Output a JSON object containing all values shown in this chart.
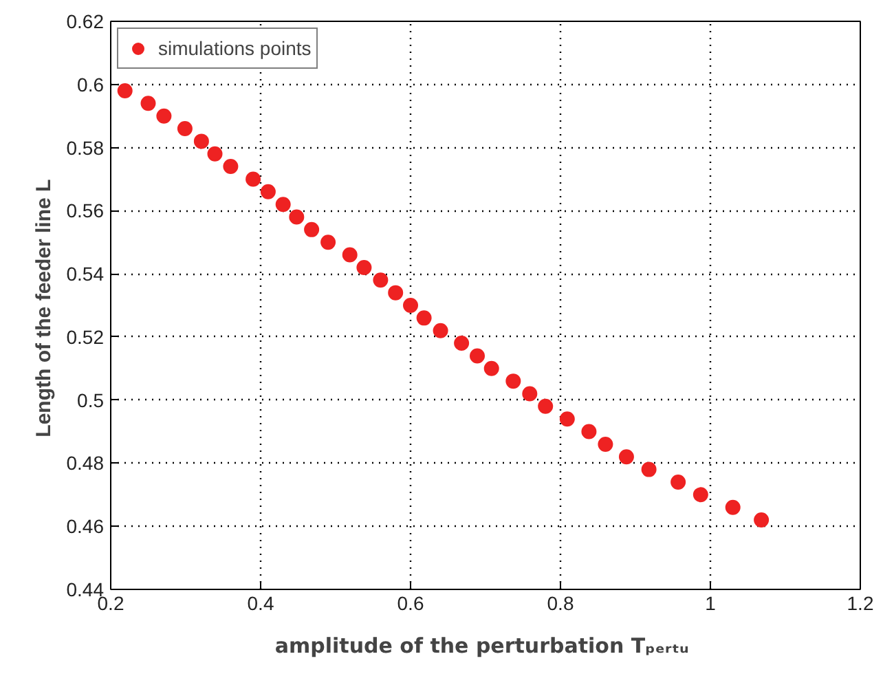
{
  "chart_data": {
    "type": "scatter",
    "xlabel": "amplitude of the perturbation  Tₚₑᵣₜᵤ",
    "ylabel": "Length of the feeder line  L",
    "x": [
      0.219,
      0.25,
      0.271,
      0.299,
      0.321,
      0.339,
      0.36,
      0.39,
      0.41,
      0.43,
      0.448,
      0.468,
      0.49,
      0.519,
      0.538,
      0.56,
      0.58,
      0.6,
      0.618,
      0.64,
      0.668,
      0.689,
      0.708,
      0.737,
      0.759,
      0.78,
      0.809,
      0.838,
      0.86,
      0.888,
      0.918,
      0.957,
      0.987,
      1.03,
      1.068
    ],
    "series": [
      {
        "name": "simulations points",
        "color": "#ee2222",
        "values": [
          0.598,
          0.594,
          0.59,
          0.586,
          0.582,
          0.578,
          0.574,
          0.57,
          0.566,
          0.562,
          0.558,
          0.554,
          0.55,
          0.546,
          0.542,
          0.538,
          0.534,
          0.53,
          0.526,
          0.522,
          0.518,
          0.514,
          0.51,
          0.506,
          0.502,
          0.498,
          0.494,
          0.49,
          0.486,
          0.482,
          0.478,
          0.474,
          0.47,
          0.466,
          0.462
        ]
      }
    ],
    "xlim": [
      0.2,
      1.2
    ],
    "ylim": [
      0.44,
      0.62
    ],
    "xticks": [
      0.2,
      0.4,
      0.6,
      0.8,
      1,
      1.2
    ],
    "yticks": [
      0.44,
      0.46,
      0.48,
      0.5,
      0.52,
      0.54,
      0.56,
      0.58,
      0.6,
      0.62
    ],
    "grid": true,
    "legend": "top left",
    "marker": "circle"
  }
}
